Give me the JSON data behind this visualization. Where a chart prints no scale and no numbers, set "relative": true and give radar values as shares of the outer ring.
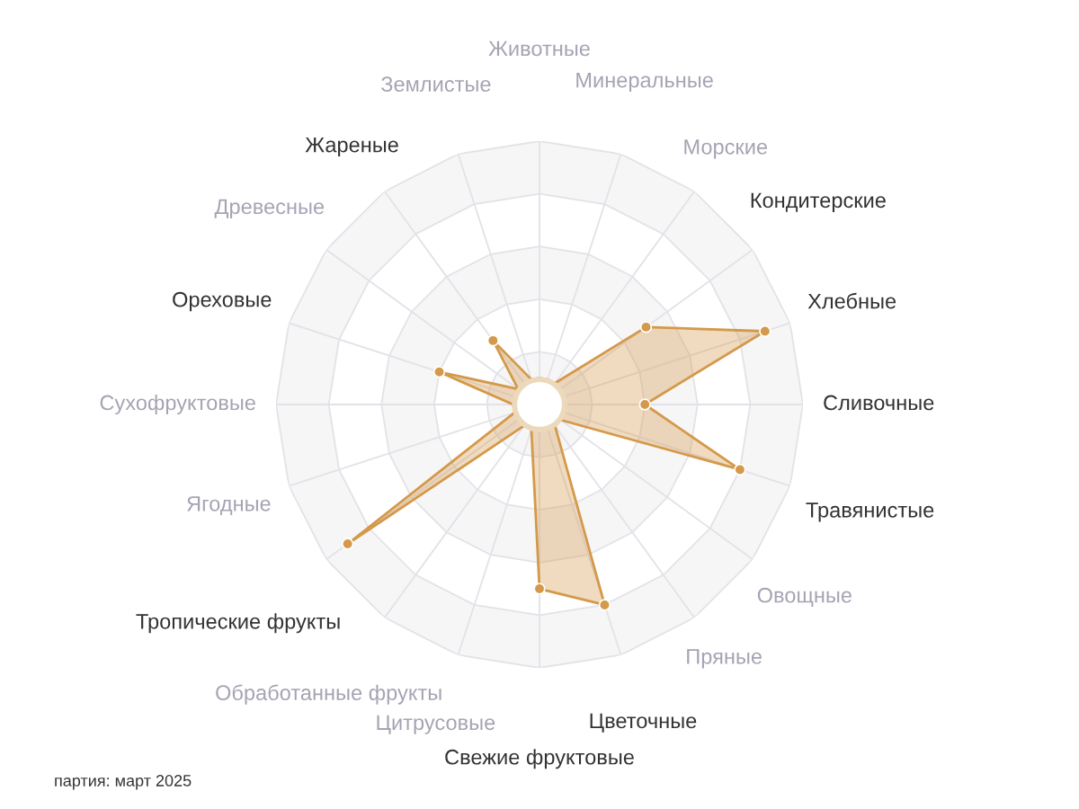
{
  "chart_data": {
    "type": "radar",
    "relative": true,
    "grid": true,
    "marker": "circle",
    "categories": [
      "Животные",
      "Минеральные",
      "Морские",
      "Кондитерские",
      "Хлебные",
      "Сливочные",
      "Травянистые",
      "Овощные",
      "Пряные",
      "Цветочные",
      "Свежие фруктовые",
      "Цитрусовые",
      "Обработанные фрукты",
      "Тропические фрукты",
      "Ягодные",
      "Сухофруктовые",
      "Ореховые",
      "Древесные",
      "Жареные",
      "Землистые"
    ],
    "series": [
      {
        "color": "#d4994a",
        "values": [
          0.1,
          0.1,
          0.1,
          0.5,
          0.9,
          0.4,
          0.8,
          0.1,
          0.1,
          0.8,
          0.7,
          0.1,
          0.1,
          0.9,
          0.1,
          0.1,
          0.4,
          0.1,
          0.3,
          0.1
        ]
      }
    ],
    "annotations": [
      "партия: март 2025"
    ]
  }
}
